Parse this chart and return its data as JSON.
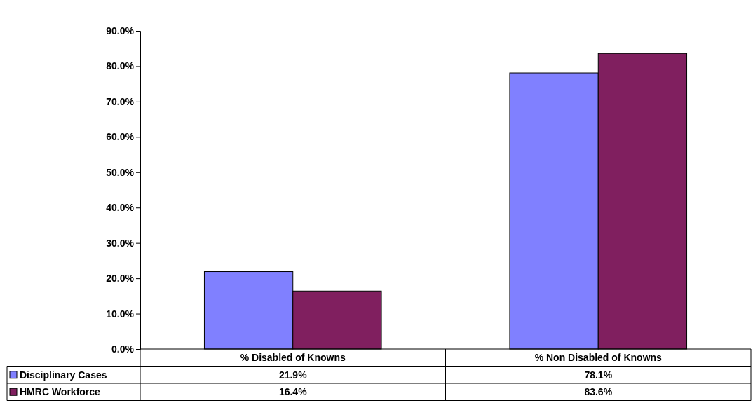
{
  "chart_data": {
    "type": "bar",
    "categories": [
      "% Disabled of Knowns",
      "% Non Disabled of Knowns"
    ],
    "series": [
      {
        "name": "Disciplinary Cases",
        "color": "#8080ff",
        "values": [
          21.9,
          78.1
        ],
        "value_labels": [
          "21.9%",
          "78.1%"
        ]
      },
      {
        "name": "HMRC Workforce",
        "color": "#801f5f",
        "values": [
          16.4,
          83.6
        ],
        "value_labels": [
          "16.4%",
          "83.6%"
        ]
      }
    ],
    "ylim": [
      0,
      90
    ],
    "yticks": [
      {
        "value": 0,
        "label": "0.0%"
      },
      {
        "value": 10,
        "label": "10.0%"
      },
      {
        "value": 20,
        "label": "20.0%"
      },
      {
        "value": 30,
        "label": "30.0%"
      },
      {
        "value": 40,
        "label": "40.0%"
      },
      {
        "value": 50,
        "label": "50.0%"
      },
      {
        "value": 60,
        "label": "60.0%"
      },
      {
        "value": 70,
        "label": "70.0%"
      },
      {
        "value": 80,
        "label": "80.0%"
      },
      {
        "value": 90,
        "label": "90.0%"
      }
    ],
    "legend": "bottom"
  }
}
